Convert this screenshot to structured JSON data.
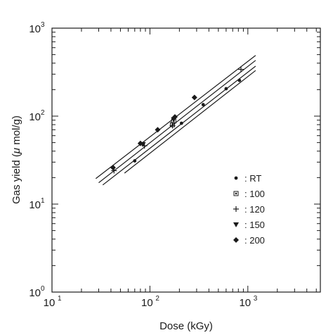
{
  "chart_data": {
    "type": "scatter",
    "title": "",
    "xlabel": "Dose (kGy)",
    "ylabel_prefix": "Gas yield (",
    "ylabel_mu": "μ",
    "ylabel_suffix": " mol/g)",
    "x_scale": "log",
    "y_scale": "log",
    "xlim": [
      10,
      5500
    ],
    "ylim": [
      1,
      1000
    ],
    "x_ticks": [
      {
        "base": "10",
        "exp": "1",
        "value": 10
      },
      {
        "base": "10",
        "exp": "2",
        "value": 100
      },
      {
        "base": "10",
        "exp": "3",
        "value": 1000
      }
    ],
    "y_ticks": [
      {
        "base": "10",
        "exp": "0",
        "value": 1
      },
      {
        "base": "10",
        "exp": "1",
        "value": 10
      },
      {
        "base": "10",
        "exp": "2",
        "value": 100
      },
      {
        "base": "10",
        "exp": "3",
        "value": 1000
      }
    ],
    "grid": false,
    "legend_position": "right",
    "series": [
      {
        "name": ": RT",
        "marker": "circle",
        "x": [
          70,
          210,
          350,
          600,
          820
        ],
        "y": [
          31,
          83,
          135,
          205,
          255
        ]
      },
      {
        "name": ": 100",
        "marker": "square-dot",
        "x": [
          170,
          175
        ],
        "y": [
          80,
          88
        ]
      },
      {
        "name": ": 120",
        "marker": "plus",
        "x": [
          43,
          88,
          170,
          850
        ],
        "y": [
          24,
          46,
          78,
          340
        ]
      },
      {
        "name": ": 150",
        "marker": "triangle-down",
        "x": [
          85,
          175
        ],
        "y": [
          48,
          92
        ]
      },
      {
        "name": ": 200",
        "marker": "diamond",
        "x": [
          42,
          80,
          120,
          180,
          285
        ],
        "y": [
          26,
          49,
          70,
          98,
          163
        ]
      }
    ],
    "fit_lines": [
      {
        "x": [
          28,
          1200
        ],
        "y": [
          19.5,
          490
        ]
      },
      {
        "x": [
          30,
          1200
        ],
        "y": [
          17.5,
          430
        ]
      },
      {
        "x": [
          33,
          1200
        ],
        "y": [
          16.5,
          370
        ]
      },
      {
        "x": [
          55,
          1200
        ],
        "y": [
          22.5,
          330
        ]
      }
    ]
  }
}
